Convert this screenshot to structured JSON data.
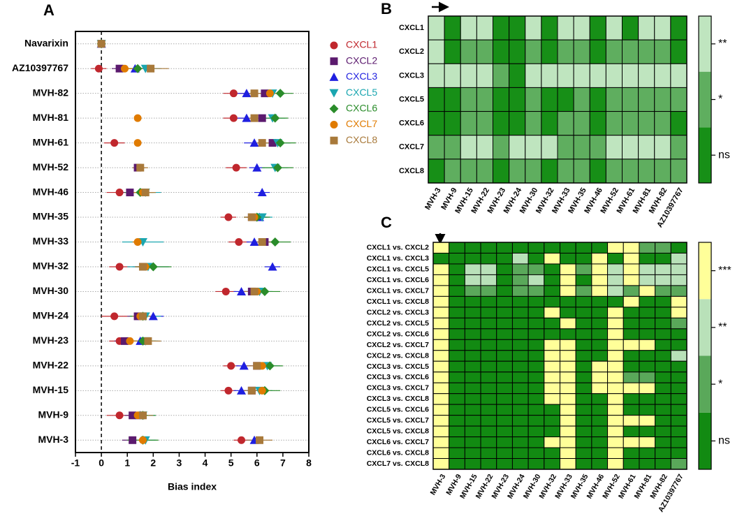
{
  "chart_data": [
    {
      "type": "dot",
      "panel": "A",
      "xlabel": "Bias index",
      "categories": [
        "Navarixin",
        "AZ10397767",
        "MVH-82",
        "MVH-81",
        "MVH-61",
        "MVH-52",
        "MVH-46",
        "MVH-35",
        "MVH-33",
        "MVH-32",
        "MVH-30",
        "MVH-24",
        "MVH-23",
        "MVH-22",
        "MVH-15",
        "MVH-9",
        "MVH-3"
      ],
      "xlim": [
        -1,
        8
      ],
      "xticks": [
        -1,
        0,
        1,
        2,
        3,
        4,
        5,
        6,
        7,
        8
      ],
      "grid": true,
      "series": [
        {
          "name": "CXCL1",
          "color": "#c0272d",
          "marker": "circle",
          "values": [
            0,
            -0.1,
            5.1,
            5.1,
            0.5,
            5.2,
            0.7,
            4.9,
            5.3,
            0.7,
            4.8,
            0.5,
            0.7,
            5.0,
            4.9,
            0.7,
            5.4
          ],
          "errors": [
            0.05,
            0.3,
            0.4,
            0.4,
            0.4,
            0.4,
            0.5,
            0.3,
            0.4,
            0.4,
            0.4,
            0.5,
            0.4,
            0.3,
            0.3,
            0.5,
            0.3
          ]
        },
        {
          "name": "CXCL2",
          "color": "#5b1a6e",
          "marker": "square",
          "values": [
            0,
            0.7,
            6.3,
            6.2,
            6.6,
            1.4,
            1.1,
            5.8,
            6.3,
            1.6,
            5.8,
            1.4,
            0.9,
            6.0,
            5.8,
            1.2,
            1.2
          ],
          "errors": [
            0.05,
            0.3,
            0.4,
            0.4,
            0.4,
            0.2,
            0.4,
            0.3,
            0.4,
            0.4,
            0.3,
            0.4,
            0.4,
            0.3,
            0.3,
            0.3,
            0.4
          ]
        },
        {
          "name": "CXCL3",
          "color": "#1f1fe0",
          "marker": "triangle",
          "values": [
            0,
            1.3,
            5.6,
            5.6,
            5.9,
            6.0,
            6.2,
            6.1,
            5.9,
            6.6,
            5.4,
            2.0,
            1.5,
            5.5,
            5.4,
            1.5,
            5.9
          ],
          "errors": [
            0.05,
            0.4,
            0.4,
            0.4,
            0.4,
            0.3,
            0.3,
            0.3,
            0.3,
            0.3,
            0.3,
            0.4,
            0.4,
            0.3,
            0.3,
            0.3,
            0.3
          ]
        },
        {
          "name": "CXCL5",
          "color": "#1aa6b0",
          "marker": "triangle-down",
          "values": [
            0,
            1.7,
            6.6,
            6.6,
            6.8,
            6.7,
            1.7,
            6.2,
            1.6,
            1.8,
            6.1,
            1.7,
            1.7,
            6.4,
            6.1,
            1.6,
            1.7
          ],
          "errors": [
            0.05,
            0.6,
            0.5,
            0.5,
            0.5,
            0.5,
            0.6,
            0.4,
            0.8,
            0.8,
            0.5,
            0.6,
            0.5,
            0.5,
            0.5,
            0.5,
            0.4
          ]
        },
        {
          "name": "CXCL6",
          "color": "#2a8c2a",
          "marker": "diamond",
          "values": [
            0,
            1.4,
            6.9,
            6.7,
            6.9,
            6.8,
            1.5,
            6.0,
            6.7,
            2.0,
            6.3,
            1.6,
            1.6,
            6.5,
            6.3,
            1.6,
            1.6
          ],
          "errors": [
            0.05,
            0.5,
            0.5,
            0.5,
            0.6,
            0.6,
            0.6,
            0.5,
            0.6,
            0.7,
            0.6,
            0.5,
            0.5,
            0.5,
            0.6,
            0.5,
            0.6
          ]
        },
        {
          "name": "CXCL7",
          "color": "#e07b00",
          "marker": "circle",
          "values": [
            0,
            0.9,
            6.5,
            1.4,
            1.4,
            1.5,
            1.6,
            5.9,
            1.4,
            1.7,
            6.0,
            1.5,
            1.1,
            6.2,
            6.2,
            1.4,
            1.6
          ],
          "errors": [
            0.05,
            0.3,
            0.4,
            0.1,
            0.1,
            0.2,
            0.4,
            0.3,
            0.2,
            0.3,
            0.3,
            0.3,
            0.3,
            0.3,
            0.3,
            0.3,
            0.2
          ]
        },
        {
          "name": "CXCL8",
          "color": "#a8793a",
          "marker": "square",
          "values": [
            0,
            1.9,
            5.9,
            5.9,
            6.2,
            1.5,
            1.7,
            5.8,
            6.2,
            1.6,
            5.9,
            1.6,
            1.8,
            6.0,
            5.8,
            1.6,
            6.1
          ],
          "errors": [
            0.05,
            0.7,
            0.4,
            0.4,
            0.4,
            0.3,
            0.4,
            0.3,
            0.4,
            0.3,
            0.4,
            0.4,
            0.5,
            0.4,
            0.4,
            0.4,
            0.5
          ]
        }
      ]
    },
    {
      "type": "heatmap",
      "panel": "B",
      "rows": [
        "CXCL1",
        "CXCL2",
        "CXCL3",
        "CXCL5",
        "CXCL6",
        "CXCL7",
        "CXCL8"
      ],
      "columns": [
        "MVH-3",
        "MVH-9",
        "MVH-15",
        "MVH-22",
        "MVH-23",
        "MVH-24",
        "MVH-30",
        "MVH-32",
        "MVH-33",
        "MVH-35",
        "MVH-46",
        "MVH-52",
        "MVH-61",
        "MVH-81",
        "MVH-82",
        "AZ10397767"
      ],
      "colors": [
        "#178f17",
        "#5fae5f",
        "#bfe5bf"
      ],
      "levels": [
        {
          "value": 0,
          "label": "ns"
        },
        {
          "value": 1,
          "label": "*"
        },
        {
          "value": 2,
          "label": "**"
        }
      ],
      "values": [
        [
          2,
          0,
          2,
          2,
          0,
          0,
          2,
          0,
          2,
          2,
          0,
          2,
          0,
          2,
          2,
          0
        ],
        [
          2,
          0,
          1,
          1,
          0,
          0,
          1,
          0,
          1,
          1,
          0,
          1,
          1,
          1,
          1,
          0
        ],
        [
          2,
          2,
          2,
          2,
          1,
          0,
          2,
          2,
          2,
          2,
          2,
          2,
          2,
          2,
          2,
          2
        ],
        [
          0,
          0,
          1,
          1,
          0,
          0,
          1,
          0,
          0,
          1,
          0,
          1,
          1,
          1,
          1,
          1
        ],
        [
          0,
          0,
          1,
          1,
          0,
          0,
          1,
          0,
          1,
          1,
          0,
          1,
          1,
          1,
          1,
          0
        ],
        [
          1,
          1,
          2,
          2,
          1,
          2,
          2,
          2,
          1,
          1,
          1,
          2,
          2,
          2,
          2,
          1
        ],
        [
          0,
          1,
          1,
          1,
          0,
          1,
          1,
          0,
          1,
          1,
          0,
          1,
          1,
          1,
          1,
          1
        ]
      ]
    },
    {
      "type": "heatmap",
      "panel": "C",
      "rows": [
        "CXCL1 vs. CXCL2",
        "CXCL1 vs. CXCL3",
        "CXCL1 vs. CXCL5",
        "CXCL1 vs. CXCL6",
        "CXCL1 vs. CXCL7",
        "CXCL1 vs. CXCL8",
        "CXCL2 vs. CXCL3",
        "CXCL2 vs. CXCL5",
        "CXCL2 vs. CXCL6",
        "CXCL2 vs. CXCL7",
        "CXCL2 vs. CXCL8",
        "CXCL3 vs. CXCL5",
        "CXCL3 vs. CXCL6",
        "CXCL3 vs. CXCL7",
        "CXCL3 vs. CXCL8",
        "CXCL5 vs. CXCL6",
        "CXCL5 vs. CXCL7",
        "CXCL5 vs. CXCL8",
        "CXCL6 vs. CXCL7",
        "CXCL6 vs. CXCL8",
        "CXCL7 vs. CXCL8"
      ],
      "columns": [
        "MVH-3",
        "MVH-9",
        "MVH-15",
        "MVH-22",
        "MVH-23",
        "MVH-24",
        "MVH-30",
        "MVH-32",
        "MVH-33",
        "MVH-35",
        "MVH-46",
        "MVH-52",
        "MVH-61",
        "MVH-81",
        "MVH-82",
        "AZ10397767"
      ],
      "colors": [
        "#128a12",
        "#5aa85a",
        "#b9e1b9",
        "#ffff99"
      ],
      "levels": [
        {
          "value": 0,
          "label": "ns"
        },
        {
          "value": 1,
          "label": "*"
        },
        {
          "value": 2,
          "label": "**"
        },
        {
          "value": 3,
          "label": "***"
        }
      ],
      "values": [
        [
          3,
          0,
          0,
          0,
          0,
          0,
          0,
          0,
          0,
          0,
          0,
          3,
          3,
          1,
          1,
          0
        ],
        [
          0,
          0,
          0,
          0,
          0,
          2,
          0,
          3,
          0,
          0,
          3,
          0,
          3,
          0,
          0,
          2
        ],
        [
          3,
          0,
          2,
          2,
          0,
          1,
          1,
          0,
          3,
          1,
          3,
          2,
          3,
          2,
          2,
          2
        ],
        [
          3,
          0,
          2,
          2,
          0,
          1,
          2,
          0,
          3,
          0,
          3,
          2,
          3,
          2,
          2,
          2
        ],
        [
          3,
          0,
          1,
          1,
          0,
          1,
          1,
          0,
          3,
          1,
          3,
          2,
          1,
          3,
          1,
          1
        ],
        [
          3,
          0,
          0,
          0,
          0,
          0,
          0,
          0,
          0,
          0,
          0,
          0,
          3,
          0,
          0,
          3
        ],
        [
          3,
          0,
          0,
          0,
          0,
          0,
          0,
          3,
          0,
          0,
          0,
          3,
          0,
          0,
          0,
          3
        ],
        [
          3,
          0,
          0,
          0,
          0,
          0,
          0,
          0,
          3,
          0,
          0,
          3,
          0,
          0,
          0,
          1
        ],
        [
          3,
          0,
          0,
          0,
          0,
          0,
          0,
          0,
          0,
          0,
          0,
          3,
          0,
          0,
          0,
          0
        ],
        [
          3,
          0,
          0,
          0,
          0,
          0,
          0,
          3,
          3,
          0,
          0,
          3,
          3,
          3,
          0,
          0
        ],
        [
          3,
          0,
          0,
          0,
          0,
          0,
          0,
          3,
          3,
          0,
          0,
          3,
          0,
          0,
          0,
          2
        ],
        [
          3,
          0,
          0,
          0,
          0,
          0,
          0,
          3,
          3,
          0,
          3,
          3,
          0,
          0,
          0,
          0
        ],
        [
          3,
          0,
          0,
          0,
          0,
          0,
          0,
          3,
          3,
          0,
          3,
          3,
          1,
          1,
          0,
          0
        ],
        [
          3,
          0,
          0,
          0,
          0,
          0,
          0,
          3,
          3,
          0,
          3,
          3,
          3,
          3,
          0,
          0
        ],
        [
          3,
          0,
          0,
          0,
          0,
          0,
          0,
          3,
          3,
          0,
          0,
          3,
          0,
          0,
          0,
          0
        ],
        [
          3,
          0,
          0,
          0,
          0,
          0,
          0,
          0,
          3,
          0,
          0,
          3,
          0,
          0,
          0,
          0
        ],
        [
          3,
          0,
          0,
          0,
          0,
          0,
          0,
          0,
          3,
          0,
          0,
          3,
          3,
          3,
          0,
          0
        ],
        [
          3,
          0,
          0,
          0,
          0,
          0,
          0,
          0,
          3,
          0,
          0,
          3,
          0,
          0,
          0,
          0
        ],
        [
          3,
          0,
          0,
          0,
          0,
          0,
          0,
          3,
          3,
          0,
          0,
          3,
          3,
          3,
          0,
          0
        ],
        [
          3,
          0,
          0,
          0,
          0,
          0,
          0,
          0,
          3,
          0,
          0,
          3,
          0,
          0,
          0,
          0
        ],
        [
          3,
          0,
          0,
          0,
          0,
          0,
          0,
          0,
          3,
          0,
          0,
          3,
          0,
          0,
          0,
          1
        ]
      ]
    }
  ]
}
